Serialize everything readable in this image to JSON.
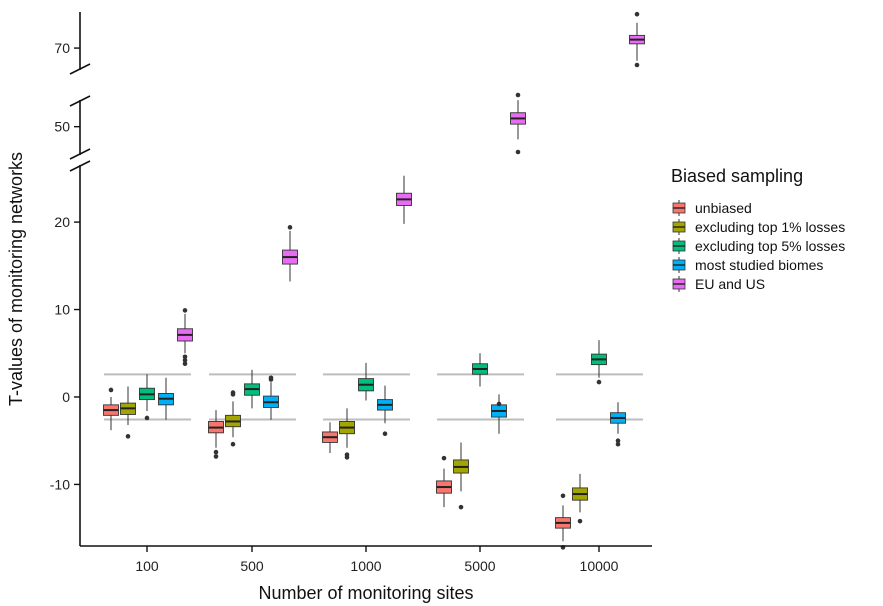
{
  "chart_data": {
    "type": "box",
    "xlabel": "Number of monitoring sites",
    "ylabel": "T-values of monitoring networks",
    "categories": [
      "100",
      "500",
      "1000",
      "5000",
      "10000"
    ],
    "y_ticks": [
      {
        "value": 70,
        "label": "70"
      },
      {
        "value": 50,
        "label": "50"
      },
      {
        "value": 20,
        "label": "20"
      },
      {
        "value": 10,
        "label": "10"
      },
      {
        "value": 0,
        "label": "0"
      },
      {
        "value": -10,
        "label": "-10"
      }
    ],
    "y_axis_breaks": [
      {
        "from": 25.5,
        "to": 46,
        "display_mm": [
          155,
          165
        ]
      },
      {
        "from": 55,
        "to": 66,
        "display_mm": [
          70,
          100
        ]
      }
    ],
    "reference_lines": [
      2.58,
      -2.58
    ],
    "legend": {
      "title": "Biased sampling",
      "position": "right",
      "entries": [
        "unbiased",
        "excluding top 1% losses",
        "excluding top 5% losses",
        "most studied biomes",
        "EU and US"
      ]
    },
    "series": [
      {
        "name": "unbiased",
        "color": "#F8766D",
        "boxes": [
          {
            "min": -3.8,
            "q1": -2.1,
            "median": -1.5,
            "q3": -0.9,
            "max": 0.0,
            "outliers": [
              0.8
            ]
          },
          {
            "min": -5.8,
            "q1": -4.1,
            "median": -3.5,
            "q3": -2.8,
            "max": -1.5,
            "outliers": [
              -6.3,
              -6.8
            ]
          },
          {
            "min": -6.4,
            "q1": -5.2,
            "median": -4.6,
            "q3": -4.0,
            "max": -2.9,
            "outliers": []
          },
          {
            "min": -12.6,
            "q1": -11.0,
            "median": -10.3,
            "q3": -9.6,
            "max": -8.2,
            "outliers": [
              -7.0
            ]
          },
          {
            "min": -16.5,
            "q1": -15.0,
            "median": -14.4,
            "q3": -13.8,
            "max": -12.4,
            "outliers": [
              -17.2,
              -11.3
            ]
          }
        ]
      },
      {
        "name": "excluding top 1% losses",
        "color": "#A3A500",
        "boxes": [
          {
            "min": -3.2,
            "q1": -2.0,
            "median": -1.3,
            "q3": -0.7,
            "max": 1.2,
            "outliers": [
              -4.5
            ]
          },
          {
            "min": -4.6,
            "q1": -3.4,
            "median": -2.8,
            "q3": -2.1,
            "max": -0.5,
            "outliers": [
              -5.4,
              0.5,
              0.3
            ]
          },
          {
            "min": -5.8,
            "q1": -4.2,
            "median": -3.5,
            "q3": -2.8,
            "max": -1.3,
            "outliers": [
              -6.6,
              -6.9
            ]
          },
          {
            "min": -10.8,
            "q1": -8.7,
            "median": -8.0,
            "q3": -7.2,
            "max": -5.2,
            "outliers": [
              -12.6
            ]
          },
          {
            "min": -13.2,
            "q1": -11.8,
            "median": -11.1,
            "q3": -10.4,
            "max": -8.8,
            "outliers": [
              -14.2
            ]
          }
        ]
      },
      {
        "name": "excluding top 5% losses",
        "color": "#00BF7D",
        "boxes": [
          {
            "min": -1.6,
            "q1": -0.3,
            "median": 0.3,
            "q3": 1.0,
            "max": 2.6,
            "outliers": [
              -2.4
            ]
          },
          {
            "min": -1.3,
            "q1": 0.2,
            "median": 0.9,
            "q3": 1.5,
            "max": 3.1,
            "outliers": []
          },
          {
            "min": -0.4,
            "q1": 0.7,
            "median": 1.4,
            "q3": 2.1,
            "max": 3.9,
            "outliers": []
          },
          {
            "min": 1.2,
            "q1": 2.6,
            "median": 3.2,
            "q3": 3.8,
            "max": 5.0,
            "outliers": []
          },
          {
            "min": 2.2,
            "q1": 3.7,
            "median": 4.3,
            "q3": 4.9,
            "max": 6.5,
            "outliers": [
              1.7
            ]
          }
        ]
      },
      {
        "name": "most studied biomes",
        "color": "#00B0F6",
        "boxes": [
          {
            "min": -2.6,
            "q1": -0.9,
            "median": -0.2,
            "q3": 0.4,
            "max": 2.2,
            "outliers": []
          },
          {
            "min": -2.6,
            "q1": -1.2,
            "median": -0.6,
            "q3": 0.1,
            "max": 1.7,
            "outliers": [
              2.0,
              2.2
            ]
          },
          {
            "min": -3.0,
            "q1": -1.5,
            "median": -0.9,
            "q3": -0.3,
            "max": 1.3,
            "outliers": [
              -4.2
            ]
          },
          {
            "min": -4.2,
            "q1": -2.3,
            "median": -1.6,
            "q3": -0.9,
            "max": 0.3,
            "outliers": [
              -0.8
            ]
          },
          {
            "min": -4.2,
            "q1": -3.0,
            "median": -2.4,
            "q3": -1.8,
            "max": -0.6,
            "outliers": [
              -5.0,
              -5.4
            ]
          }
        ]
      },
      {
        "name": "EU and US",
        "color": "#E76BF3",
        "boxes": [
          {
            "min": 5.0,
            "q1": 6.4,
            "median": 7.1,
            "q3": 7.8,
            "max": 9.5,
            "outliers": [
              9.9,
              4.6,
              4.2,
              3.8
            ]
          },
          {
            "min": 13.2,
            "q1": 15.2,
            "median": 16.0,
            "q3": 16.8,
            "max": 19.0,
            "outliers": [
              19.4
            ]
          },
          {
            "min": 19.8,
            "q1": 21.9,
            "median": 22.6,
            "q3": 23.3,
            "max": 25.3,
            "outliers": []
          },
          {
            "min": 48.0,
            "q1": 50.4,
            "median": 51.3,
            "q3": 52.2,
            "max": 54.2,
            "outliers": [
              55.0,
              46.0
            ]
          },
          {
            "min": 67.0,
            "q1": 71.0,
            "median": 72.0,
            "q3": 73.0,
            "max": 76.0,
            "outliers": [
              78.0,
              66.0
            ]
          }
        ]
      }
    ]
  }
}
